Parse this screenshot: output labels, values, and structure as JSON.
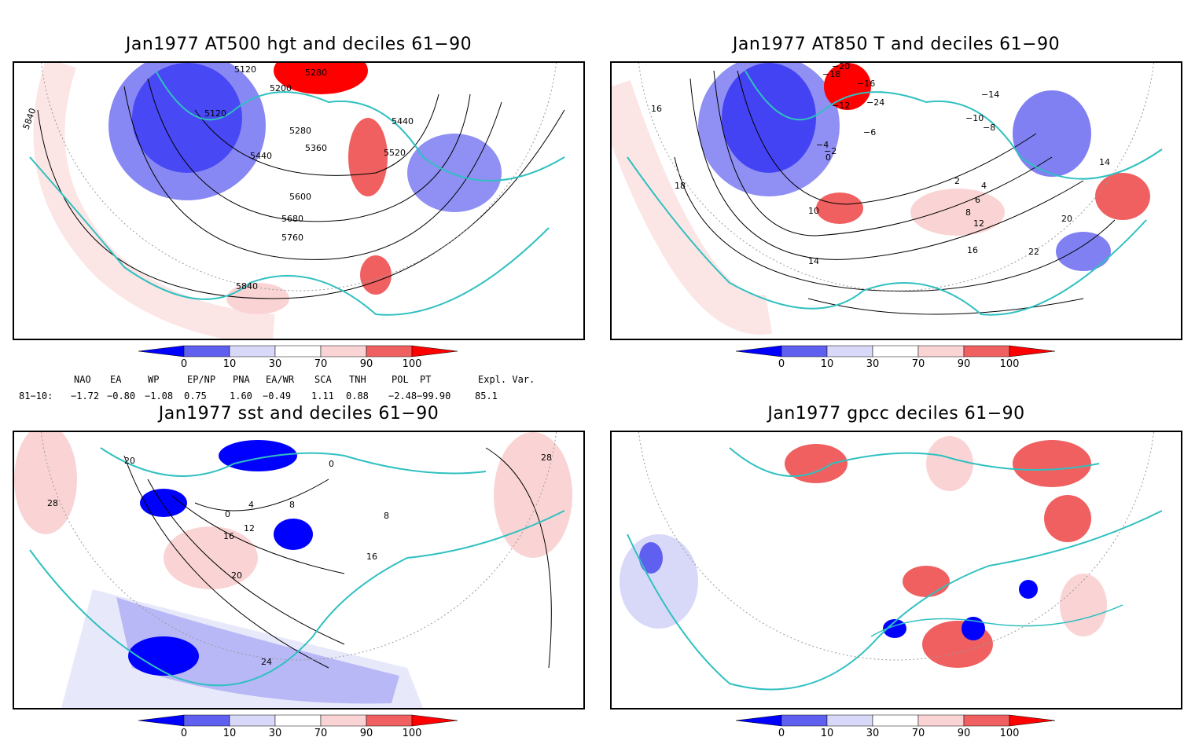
{
  "panels": {
    "tl": {
      "title": "Jan1977 AT500 hgt and deciles 61−90",
      "labels": [
        "5120",
        "5280",
        "5200",
        "5120",
        "5280",
        "5440",
        "5360",
        "5440",
        "5520",
        "5600",
        "5680",
        "5760",
        "5840",
        "5840"
      ]
    },
    "tr": {
      "title": "Jan1977 AT850 T and deciles 61−90",
      "labels": [
        "−20",
        "−18",
        "−16",
        "−14",
        "−12",
        "−10",
        "−8",
        "−6",
        "−4",
        "−2",
        "0",
        "2",
        "4",
        "6",
        "8",
        "10",
        "12",
        "14",
        "16",
        "18",
        "20",
        "22",
        "−24",
        "16",
        "14"
      ]
    },
    "bl": {
      "title": "Jan1977 sst and deciles 61−90",
      "labels": [
        "20",
        "28",
        "0",
        "4",
        "8",
        "12",
        "16",
        "20",
        "24",
        "28",
        "16",
        "8",
        "0"
      ]
    },
    "br": {
      "title": "Jan1977 gpcc deciles 61−90",
      "labels": []
    }
  },
  "colorbar": {
    "ticks": [
      "0",
      "10",
      "30",
      "70",
      "90",
      "100"
    ],
    "colors": [
      "#0000ff",
      "#6060f0",
      "#d8d8f8",
      "#ffffff",
      "#fad4d4",
      "#f06060",
      "#ff0000"
    ]
  },
  "indices": {
    "headers": [
      "NAO",
      "EA",
      "WP",
      "EP/NP",
      "PNA",
      "EA/WR",
      "SCA",
      "TNH",
      "POL",
      "PT",
      "Expl. Var."
    ],
    "row_label": "81−10:",
    "values": [
      "−1.72",
      "−0.80",
      "−1.08",
      "0.75",
      "1.60",
      "−0.49",
      "1.11",
      "0.88",
      "−2.48",
      "−99.90",
      "85.1"
    ]
  },
  "colors": {
    "coast": "#30c0c0",
    "contour": "#000000",
    "grid": "#999999"
  }
}
